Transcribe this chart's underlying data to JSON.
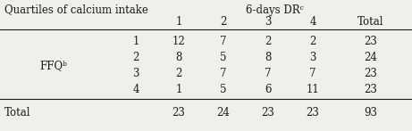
{
  "title_left": "Quartiles of calcium intake",
  "title_right": "6-days DRᶜ",
  "col_headers": [
    "1",
    "2",
    "3",
    "4",
    "Total"
  ],
  "row_label_group": "FFQᵇ",
  "row_sublabels": [
    "1",
    "2",
    "3",
    "4"
  ],
  "data": [
    [
      12,
      7,
      2,
      2,
      23
    ],
    [
      8,
      5,
      8,
      3,
      24
    ],
    [
      2,
      7,
      7,
      7,
      23
    ],
    [
      1,
      5,
      6,
      11,
      23
    ]
  ],
  "totals": [
    23,
    24,
    23,
    23,
    93
  ],
  "bg_color": "#f0f0eb",
  "text_color": "#1a1a1a",
  "font_size": 8.5,
  "figsize": [
    4.61,
    1.47
  ],
  "dpi": 100
}
